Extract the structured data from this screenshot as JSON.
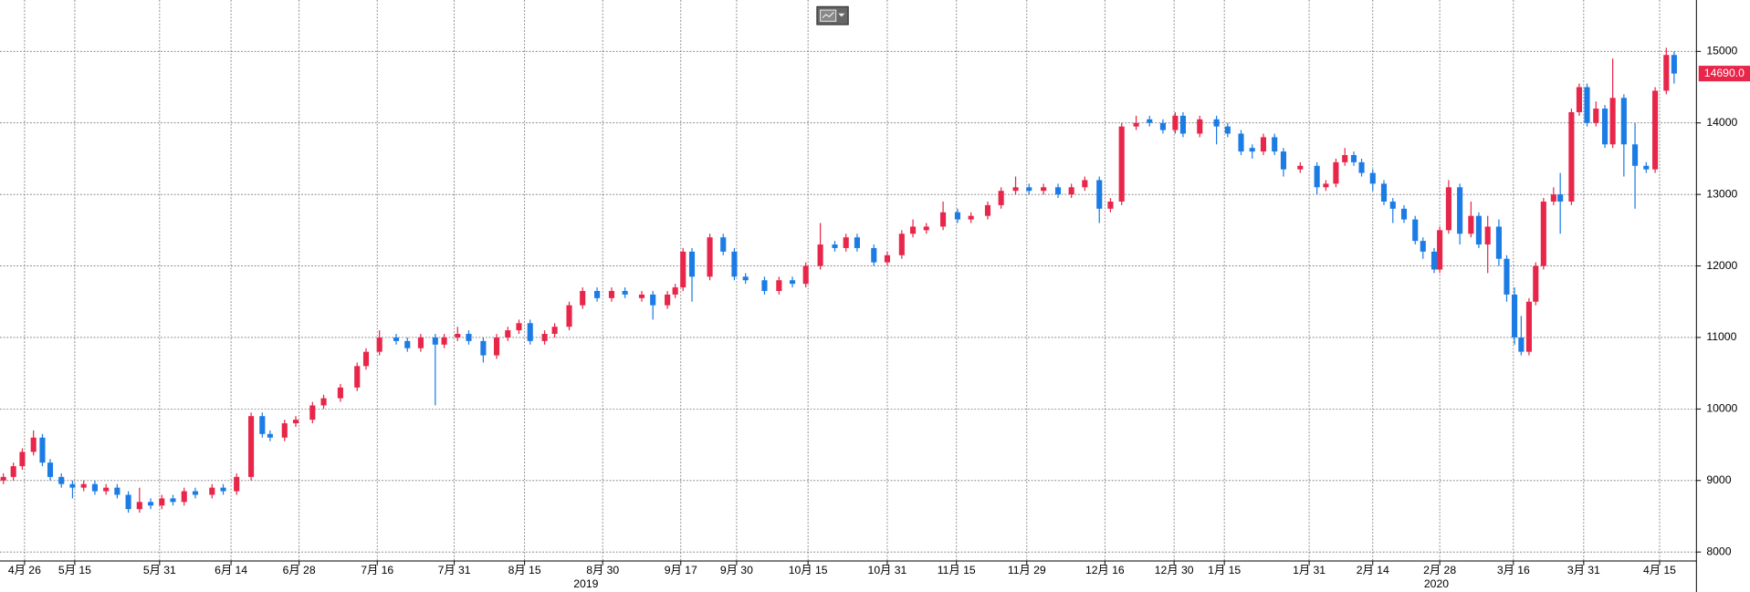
{
  "chart_data": {
    "type": "candlestick",
    "x": [
      3,
      12,
      20,
      30,
      38,
      45,
      55,
      65,
      75,
      85,
      95,
      105,
      115,
      125,
      135,
      145,
      155,
      165,
      175,
      190,
      200,
      212,
      225,
      235,
      242,
      255,
      265,
      280,
      290,
      305,
      320,
      328,
      340,
      355,
      365,
      377,
      390,
      398,
      410,
      420,
      433,
      445,
      455,
      465,
      475,
      488,
      497,
      510,
      522,
      535,
      548,
      560,
      575,
      585,
      598,
      605,
      612,
      620,
      636,
      648,
      658,
      668,
      685,
      698,
      710,
      722,
      735,
      748,
      758,
      768,
      783,
      795,
      808,
      818,
      830,
      845,
      858,
      870,
      885,
      897,
      910,
      922,
      935,
      948,
      960,
      972,
      985,
      995,
      1005,
      1018,
      1030,
      1042,
      1053,
      1060,
      1075,
      1090,
      1100,
      1112,
      1122,
      1132,
      1142,
      1150,
      1165,
      1180,
      1188,
      1197,
      1205,
      1213,
      1220,
      1230,
      1240,
      1248,
      1258,
      1268,
      1275,
      1285,
      1290,
      1298,
      1308,
      1318,
      1325,
      1333,
      1343,
      1350,
      1357,
      1363,
      1370,
      1376,
      1383,
      1392,
      1398,
      1408,
      1415,
      1422,
      1430,
      1438,
      1445,
      1455,
      1465,
      1475,
      1483,
      1493,
      1500
    ],
    "open": [
      9000,
      9050,
      9200,
      9400,
      9600,
      9250,
      9050,
      8950,
      8900,
      8950,
      8850,
      8900,
      8800,
      8600,
      8700,
      8650,
      8750,
      8700,
      8850,
      8800,
      8900,
      8850,
      9050,
      9900,
      9650,
      9600,
      9800,
      9850,
      10050,
      10150,
      10300,
      10600,
      10800,
      11000,
      10950,
      10850,
      11000,
      10900,
      11000,
      11050,
      10950,
      10750,
      11000,
      11100,
      11200,
      10950,
      11050,
      11150,
      11450,
      11650,
      11550,
      11650,
      11550,
      11600,
      11450,
      11600,
      11700,
      12200,
      11850,
      12400,
      12200,
      11850,
      11800,
      11650,
      11800,
      11750,
      12000,
      12300,
      12250,
      12400,
      12250,
      12050,
      12150,
      12450,
      12500,
      12550,
      12750,
      12650,
      12700,
      12850,
      13050,
      13100,
      13050,
      13100,
      13000,
      13100,
      13200,
      12800,
      12900,
      13950,
      14050,
      14000,
      13900,
      14100,
      13850,
      14050,
      13950,
      13850,
      13650,
      13600,
      13800,
      13600,
      13350,
      13400,
      13100,
      13150,
      13450,
      13550,
      13450,
      13300,
      13150,
      12900,
      12800,
      12650,
      12350,
      12200,
      11950,
      12500,
      13100,
      12450,
      12700,
      12300,
      12550,
      12100,
      11600,
      11000,
      10800,
      11500,
      12000,
      12900,
      13000,
      12900,
      14150,
      14500,
      14000,
      14200,
      13700,
      14350,
      13700,
      13400,
      13350,
      14450,
      14950
    ],
    "high": [
      9100,
      9250,
      9450,
      9700,
      9650,
      9300,
      9100,
      9000,
      9000,
      9000,
      8950,
      8950,
      8850,
      8900,
      8750,
      8800,
      8800,
      8900,
      8900,
      8950,
      8950,
      9100,
      9950,
      9950,
      9700,
      9850,
      9900,
      10100,
      10200,
      10350,
      10650,
      10850,
      11100,
      11050,
      11000,
      11050,
      11050,
      11050,
      11150,
      11100,
      11000,
      11050,
      11150,
      11250,
      11250,
      11100,
      11200,
      11500,
      11700,
      11700,
      11700,
      11700,
      11650,
      11650,
      11650,
      11750,
      12250,
      12250,
      12450,
      12450,
      12250,
      11900,
      11850,
      11850,
      11850,
      12050,
      12600,
      12350,
      12450,
      12450,
      12300,
      12200,
      12500,
      12650,
      12600,
      12900,
      12800,
      12750,
      12900,
      13100,
      13250,
      13150,
      13150,
      13150,
      13150,
      13250,
      13250,
      12950,
      14000,
      14100,
      14100,
      14050,
      14150,
      14150,
      14100,
      14100,
      14000,
      13900,
      13700,
      13850,
      13850,
      13650,
      13450,
      13450,
      13200,
      13500,
      13650,
      13600,
      13500,
      13350,
      13200,
      12950,
      12850,
      12700,
      12400,
      12250,
      12550,
      13200,
      13150,
      12900,
      12750,
      12700,
      12650,
      12150,
      11700,
      11300,
      11550,
      12050,
      12950,
      13100,
      13300,
      14200,
      14550,
      14550,
      14300,
      14250,
      14900,
      14400,
      14000,
      13450,
      14500,
      15050,
      15000
    ],
    "low": [
      8950,
      9000,
      9150,
      9350,
      9200,
      9000,
      8900,
      8750,
      8850,
      8800,
      8800,
      8750,
      8550,
      8550,
      8600,
      8600,
      8650,
      8650,
      8750,
      8750,
      8800,
      8800,
      9000,
      9600,
      9550,
      9550,
      9750,
      9800,
      10000,
      10100,
      10250,
      10550,
      10750,
      10900,
      10800,
      10800,
      10050,
      10850,
      10950,
      10900,
      10650,
      10700,
      10950,
      11050,
      10900,
      10900,
      11000,
      11100,
      11400,
      11500,
      11500,
      11550,
      11500,
      11250,
      11400,
      11550,
      11650,
      11500,
      11800,
      12150,
      11800,
      11750,
      11600,
      11600,
      11700,
      11700,
      11950,
      12200,
      12200,
      12200,
      12000,
      12000,
      12100,
      12400,
      12450,
      12500,
      12600,
      12600,
      12650,
      12800,
      13000,
      13000,
      13000,
      12950,
      12950,
      13050,
      12600,
      12750,
      12850,
      13900,
      13950,
      13850,
      13850,
      13800,
      13800,
      13700,
      13800,
      13550,
      13500,
      13550,
      13550,
      13250,
      13300,
      13000,
      13050,
      13100,
      13400,
      13400,
      13250,
      13050,
      12850,
      12600,
      12600,
      12300,
      12100,
      11900,
      11900,
      12450,
      12300,
      12400,
      12250,
      11900,
      12000,
      11500,
      10900,
      10750,
      10750,
      11450,
      11950,
      12850,
      12450,
      12850,
      14100,
      13950,
      13950,
      13650,
      13650,
      13250,
      12800,
      13300,
      13300,
      14400,
      14550
    ],
    "close": [
      9050,
      9200,
      9400,
      9600,
      9250,
      9050,
      8950,
      8900,
      8950,
      8850,
      8900,
      8800,
      8600,
      8700,
      8650,
      8750,
      8700,
      8850,
      8800,
      8900,
      8850,
      9050,
      9900,
      9650,
      9600,
      9800,
      9850,
      10050,
      10150,
      10300,
      10600,
      10800,
      11000,
      10950,
      10850,
      11000,
      10900,
      11000,
      11050,
      10950,
      10750,
      11000,
      11100,
      11200,
      10950,
      11050,
      11150,
      11450,
      11650,
      11550,
      11650,
      11600,
      11600,
      11450,
      11600,
      11700,
      12200,
      11850,
      12400,
      12200,
      11850,
      11800,
      11650,
      11800,
      11750,
      12000,
      12300,
      12250,
      12400,
      12250,
      12050,
      12150,
      12450,
      12550,
      12550,
      12750,
      12650,
      12700,
      12850,
      13050,
      13100,
      13050,
      13100,
      13000,
      13100,
      13200,
      12800,
      12900,
      13950,
      14000,
      14000,
      13900,
      14100,
      13850,
      14050,
      13950,
      13850,
      13600,
      13600,
      13800,
      13600,
      13350,
      13400,
      13100,
      13150,
      13450,
      13550,
      13450,
      13300,
      13150,
      12900,
      12800,
      12650,
      12350,
      12200,
      11950,
      12500,
      13100,
      12450,
      12700,
      12300,
      12550,
      12100,
      11600,
      11000,
      10800,
      11500,
      12000,
      12900,
      13000,
      12900,
      14150,
      14500,
      14000,
      14200,
      13700,
      14350,
      13700,
      13400,
      13350,
      14450,
      14950,
      14690
    ],
    "up_color": "#e8264a",
    "down_color": "#1c7ce6",
    "xlim": [
      0,
      1520
    ],
    "ylim": [
      7875,
      15718
    ],
    "yticks": [
      8000,
      9000,
      10000,
      11000,
      12000,
      13000,
      14000,
      15000
    ],
    "xticks": [
      {
        "value": 22,
        "label": "4月 26"
      },
      {
        "value": 67,
        "label": "5月 15"
      },
      {
        "value": 143,
        "label": "5月 31"
      },
      {
        "value": 207,
        "label": "6月 14"
      },
      {
        "value": 268,
        "label": "6月 28"
      },
      {
        "value": 338,
        "label": "7月 16"
      },
      {
        "value": 407,
        "label": "7月 31"
      },
      {
        "value": 470,
        "label": "8月 15"
      },
      {
        "value": 540,
        "label": "8月 30"
      },
      {
        "value": 610,
        "label": "9月 17"
      },
      {
        "value": 660,
        "label": "9月 30"
      },
      {
        "value": 724,
        "label": "10月 15"
      },
      {
        "value": 795,
        "label": "10月 31"
      },
      {
        "value": 857,
        "label": "11月 15"
      },
      {
        "value": 920,
        "label": "11月 29"
      },
      {
        "value": 990,
        "label": "12月 16"
      },
      {
        "value": 1052,
        "label": "12月 30"
      },
      {
        "value": 1097,
        "label": "1月 15"
      },
      {
        "value": 1173,
        "label": "1月 31"
      },
      {
        "value": 1230,
        "label": "2月 14"
      },
      {
        "value": 1290,
        "label": "2月 28"
      },
      {
        "value": 1356,
        "label": "3月 16"
      },
      {
        "value": 1419,
        "label": "3月 31"
      },
      {
        "value": 1487,
        "label": "4月 15"
      }
    ],
    "year_ticks": [
      {
        "value": 525,
        "label": "2019"
      },
      {
        "value": 1287,
        "label": "2020"
      }
    ],
    "last_price_label": "14690.0",
    "grid": true
  }
}
